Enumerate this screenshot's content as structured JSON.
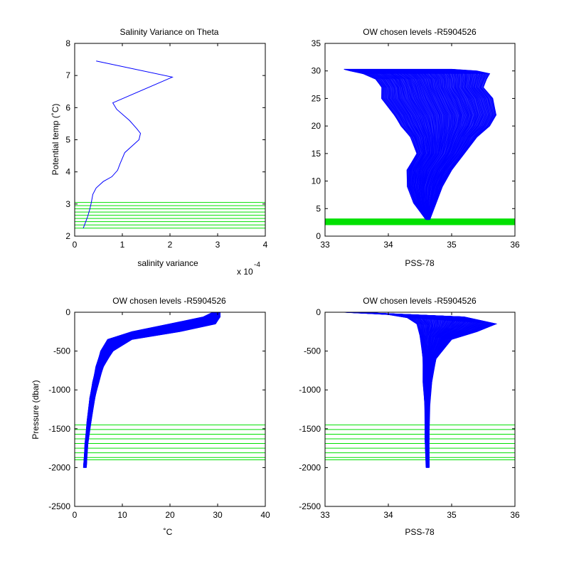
{
  "colors": {
    "profile": "#0000ff",
    "levels": "#00e000",
    "axes": "#000000",
    "background": "#ffffff"
  },
  "chart_data": [
    {
      "id": "tl",
      "type": "line",
      "title": "Salinity Variance on Theta",
      "xlabel": "salinity variance",
      "ylabel": "Potential temp (˚C)",
      "x_exponent_label": "x 10",
      "x_exponent": "-4",
      "xlim": [
        0,
        4
      ],
      "ylim": [
        2,
        8
      ],
      "xticks": [
        0,
        1,
        2,
        3,
        4
      ],
      "yticks": [
        2,
        3,
        4,
        5,
        6,
        7,
        8
      ],
      "xticklabels": [
        "0",
        "1",
        "2",
        "3",
        "4"
      ],
      "yticklabels": [
        "2",
        "3",
        "4",
        "5",
        "6",
        "7",
        "8"
      ],
      "y_reversed": false,
      "series": [
        {
          "kind": "line",
          "x": [
            0.45,
            2.05,
            0.8,
            0.88,
            1.15,
            1.3,
            1.38,
            1.35,
            1.05,
            0.95,
            0.9,
            0.78,
            0.6,
            0.45,
            0.38,
            0.35,
            0.32,
            0.27,
            0.22,
            0.18
          ],
          "y": [
            7.45,
            6.95,
            6.15,
            5.95,
            5.6,
            5.35,
            5.2,
            5.0,
            4.6,
            4.25,
            4.05,
            3.85,
            3.7,
            3.5,
            3.3,
            3.05,
            2.85,
            2.6,
            2.4,
            2.25
          ]
        }
      ],
      "levels": {
        "orientation": "horizontal",
        "values": [
          2.25,
          2.35,
          2.45,
          2.55,
          2.65,
          2.75,
          2.85,
          2.95,
          3.05
        ]
      }
    },
    {
      "id": "tr",
      "type": "line",
      "title": "OW chosen levels -R5904526",
      "xlabel": "PSS-78",
      "ylabel": "",
      "xlim": [
        33,
        36
      ],
      "ylim": [
        0,
        35
      ],
      "xticks": [
        33,
        34,
        35,
        36
      ],
      "yticks": [
        0,
        5,
        10,
        15,
        20,
        25,
        30,
        35
      ],
      "xticklabels": [
        "33",
        "34",
        "35",
        "36"
      ],
      "yticklabels": [
        "0",
        "5",
        "10",
        "15",
        "20",
        "25",
        "30",
        "35"
      ],
      "y_reversed": false,
      "profile_family": {
        "count": 120,
        "left_edge": {
          "x": [
            34.6,
            34.4,
            34.3,
            34.3,
            34.45,
            34.35,
            34.2,
            34.1,
            33.9,
            33.9,
            33.8,
            33.6,
            33.4,
            33.3
          ],
          "y": [
            3.0,
            6.0,
            9.0,
            12.0,
            15.0,
            18.0,
            20.0,
            22.0,
            25.0,
            27.0,
            28.5,
            29.5,
            30.0,
            30.3
          ]
        },
        "right_edge": {
          "x": [
            34.65,
            34.75,
            34.85,
            35.0,
            35.2,
            35.4,
            35.6,
            35.7,
            35.65,
            35.5,
            35.55,
            35.6,
            35.4,
            35.0
          ],
          "y": [
            3.0,
            6.0,
            9.0,
            12.0,
            15.0,
            18.0,
            20.0,
            22.0,
            25.0,
            27.0,
            28.5,
            29.5,
            30.0,
            30.3
          ]
        }
      },
      "levels": {
        "orientation": "horizontal",
        "band": [
          2.0,
          3.2
        ]
      }
    },
    {
      "id": "bl",
      "type": "line",
      "title": "OW chosen levels -R5904526",
      "xlabel": "˚C",
      "ylabel": "Pressure (dbar)",
      "xlim": [
        0,
        40
      ],
      "ylim": [
        -2500,
        0
      ],
      "xticks": [
        0,
        10,
        20,
        30,
        40
      ],
      "yticks": [
        -2500,
        -2000,
        -1500,
        -1000,
        -500,
        0
      ],
      "xticklabels": [
        "0",
        "10",
        "20",
        "30",
        "40"
      ],
      "yticklabels": [
        "-2500",
        "-2000",
        "-1500",
        "-1000",
        "-500",
        "0"
      ],
      "y_reversed": false,
      "profile_family": {
        "count": 120,
        "left_edge": {
          "x": [
            29.0,
            27.0,
            20.0,
            12.0,
            7.0,
            5.5,
            4.5,
            3.8,
            3.2,
            2.6,
            2.2,
            1.9
          ],
          "y": [
            0,
            -60,
            -150,
            -250,
            -350,
            -500,
            -700,
            -900,
            -1100,
            -1400,
            -1700,
            -2000
          ]
        },
        "right_edge": {
          "x": [
            30.5,
            30.5,
            29.5,
            22.0,
            12.0,
            8.0,
            6.0,
            5.0,
            4.2,
            3.4,
            2.7,
            2.4
          ],
          "y": [
            0,
            -60,
            -150,
            -250,
            -350,
            -500,
            -700,
            -900,
            -1100,
            -1400,
            -1700,
            -2000
          ]
        }
      },
      "levels": {
        "orientation": "horizontal",
        "values": [
          -1450,
          -1510,
          -1570,
          -1630,
          -1690,
          -1750,
          -1810,
          -1870,
          -1900
        ]
      }
    },
    {
      "id": "br",
      "type": "line",
      "title": "OW chosen levels -R5904526",
      "xlabel": "PSS-78",
      "ylabel": "",
      "xlim": [
        33,
        36
      ],
      "ylim": [
        -2500,
        0
      ],
      "xticks": [
        33,
        34,
        35,
        36
      ],
      "yticks": [
        -2500,
        -2000,
        -1500,
        -1000,
        -500,
        0
      ],
      "xticklabels": [
        "33",
        "34",
        "35",
        "36"
      ],
      "yticklabels": [
        "-2500",
        "-2000",
        "-1500",
        "-1000",
        "-500",
        "0"
      ],
      "y_reversed": false,
      "profile_family": {
        "count": 120,
        "left_edge": {
          "x": [
            33.3,
            34.0,
            34.3,
            34.45,
            34.5,
            34.55,
            34.55,
            34.58,
            34.58,
            34.6
          ],
          "y": [
            0,
            -30,
            -70,
            -150,
            -300,
            -600,
            -900,
            -1200,
            -1600,
            -2000
          ]
        },
        "right_edge": {
          "x": [
            33.5,
            35.2,
            35.7,
            35.4,
            35.0,
            34.75,
            34.68,
            34.65,
            34.64,
            34.64
          ],
          "y": [
            0,
            -60,
            -150,
            -250,
            -350,
            -600,
            -900,
            -1200,
            -1600,
            -2000
          ]
        }
      },
      "levels": {
        "orientation": "horizontal",
        "values": [
          -1450,
          -1510,
          -1570,
          -1630,
          -1690,
          -1750,
          -1810,
          -1870,
          -1900
        ]
      }
    }
  ]
}
